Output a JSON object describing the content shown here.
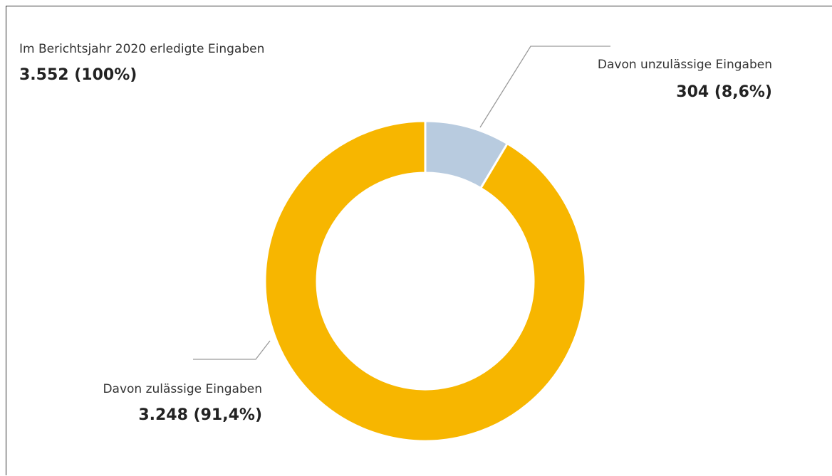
{
  "chart_data": {
    "type": "pie",
    "style": "donut",
    "total": {
      "label": "Im Berichtsjahr 2020 erledigte Eingaben",
      "value_text": "3.552 (100%)",
      "value": 3552
    },
    "slices": [
      {
        "name": "Davon unzulässige Eingaben",
        "value": 304,
        "value_text": "304 (8,6%)",
        "percent": 8.6,
        "color": "#b8cbdf"
      },
      {
        "name": "Davon zulässige Eingaben",
        "value": 3248,
        "value_text": "3.248 (91,4%)",
        "percent": 91.4,
        "color": "#f7b600"
      }
    ],
    "start_angle": "12 o'clock",
    "direction": "clockwise",
    "leader_line_color": "#9a9a9a"
  }
}
